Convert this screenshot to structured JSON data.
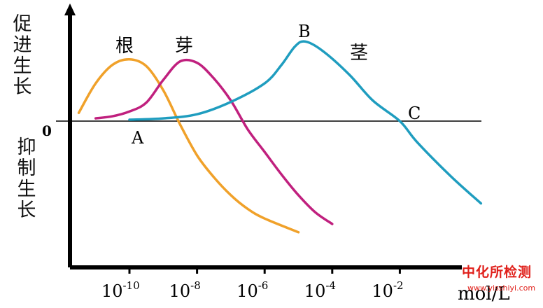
{
  "labels": {
    "promote": [
      "促",
      "进",
      "生",
      "长"
    ],
    "inhibit": [
      "抑",
      "制",
      "生",
      "长"
    ],
    "origin": "0",
    "unit": "mol/L",
    "point_a": "A",
    "point_b": "B",
    "point_c": "C"
  },
  "watermark": {
    "line1": "中化所检测",
    "line2": "www.yisshiyi.com"
  },
  "chart_data": {
    "type": "line",
    "xscale": "log10",
    "xlim": [
      -12,
      1
    ],
    "ylim": [
      -1.6,
      1.0
    ],
    "xticks": [
      {
        "exp": -10,
        "base": "10",
        "sup": "-10"
      },
      {
        "exp": -8,
        "base": "10",
        "sup": "-8"
      },
      {
        "exp": -6,
        "base": "10",
        "sup": "-6"
      },
      {
        "exp": -4,
        "base": "10",
        "sup": "-4"
      },
      {
        "exp": -2,
        "base": "10",
        "sup": "-2"
      }
    ],
    "series": [
      {
        "name": "根",
        "color": "#f0a12a",
        "points": [
          [
            -11.5,
            0.12
          ],
          [
            -11.0,
            0.55
          ],
          [
            -10.5,
            0.82
          ],
          [
            -10.0,
            0.9
          ],
          [
            -9.5,
            0.8
          ],
          [
            -9.0,
            0.45
          ],
          [
            -8.5,
            -0.05
          ],
          [
            -8.0,
            -0.5
          ],
          [
            -7.5,
            -0.82
          ],
          [
            -7.0,
            -1.08
          ],
          [
            -6.5,
            -1.28
          ],
          [
            -6.0,
            -1.42
          ],
          [
            -5.0,
            -1.62
          ]
        ]
      },
      {
        "name": "芽",
        "color": "#c0207e",
        "points": [
          [
            -11.0,
            0.04
          ],
          [
            -10.5,
            0.07
          ],
          [
            -10.0,
            0.14
          ],
          [
            -9.5,
            0.27
          ],
          [
            -9.0,
            0.6
          ],
          [
            -8.5,
            0.87
          ],
          [
            -8.0,
            0.85
          ],
          [
            -7.5,
            0.62
          ],
          [
            -7.0,
            0.3
          ],
          [
            -6.5,
            -0.12
          ],
          [
            -6.0,
            -0.45
          ],
          [
            -5.5,
            -0.78
          ],
          [
            -5.0,
            -1.08
          ],
          [
            -4.5,
            -1.33
          ],
          [
            -4.0,
            -1.5
          ]
        ]
      },
      {
        "name": "茎",
        "color": "#1f9dbf",
        "points": [
          [
            -10.0,
            0.02
          ],
          [
            -9.0,
            0.04
          ],
          [
            -8.0,
            0.1
          ],
          [
            -7.0,
            0.28
          ],
          [
            -6.0,
            0.55
          ],
          [
            -5.5,
            0.82
          ],
          [
            -5.1,
            1.09
          ],
          [
            -4.8,
            1.16
          ],
          [
            -4.3,
            1.03
          ],
          [
            -3.5,
            0.68
          ],
          [
            -2.8,
            0.3
          ],
          [
            -2.0,
            0.0
          ],
          [
            -1.5,
            -0.3
          ],
          [
            -0.5,
            -0.8
          ],
          [
            0.4,
            -1.2
          ]
        ]
      }
    ]
  }
}
